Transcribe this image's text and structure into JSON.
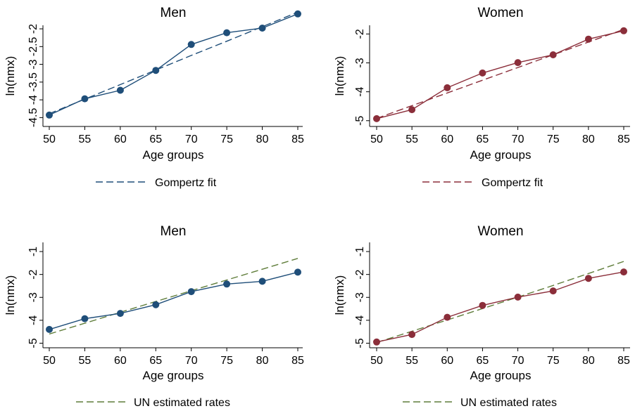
{
  "chart_data": [
    {
      "type": "line",
      "title": "Men",
      "xlabel": "Age groups",
      "ylabel": "ln(nmx)",
      "x": [
        50,
        55,
        60,
        65,
        70,
        75,
        80,
        85
      ],
      "x_ticks": [
        "50",
        "55",
        "60",
        "65",
        "70",
        "75",
        "80",
        "85"
      ],
      "y_ticks": [
        "-4.5",
        "-4",
        "-3.5",
        "-3",
        "-2.5",
        "-2"
      ],
      "y_tick_values": [
        -4.5,
        -4,
        -3.5,
        -3,
        -2.5,
        -2
      ],
      "xlim": [
        50,
        85
      ],
      "ylim": [
        -4.75,
        -1.9
      ],
      "series": [
        {
          "role": "observed",
          "style": "solid-markers",
          "color": "#1f4e79",
          "values": [
            -4.43,
            -3.97,
            -3.73,
            -3.17,
            -2.44,
            -2.11,
            -1.98,
            -1.58
          ]
        },
        {
          "role": "fit",
          "name": "Gompertz fit",
          "style": "dashed",
          "color": "#1f4e79",
          "values": [
            -4.39,
            -3.98,
            -3.57,
            -3.16,
            -2.75,
            -2.35,
            -1.94,
            -1.53
          ]
        }
      ],
      "legend": [
        "Gompertz fit"
      ]
    },
    {
      "type": "line",
      "title": "Women",
      "xlabel": "Age groups",
      "ylabel": "ln(nmx)",
      "x": [
        50,
        55,
        60,
        65,
        70,
        75,
        80,
        85
      ],
      "x_ticks": [
        "50",
        "55",
        "60",
        "65",
        "70",
        "75",
        "80",
        "85"
      ],
      "y_ticks": [
        "-5",
        "-4",
        "-3",
        "-2"
      ],
      "y_tick_values": [
        -5,
        -4,
        -3,
        -2
      ],
      "xlim": [
        50,
        85
      ],
      "ylim": [
        -5.2,
        -1.7
      ],
      "series": [
        {
          "role": "observed",
          "style": "solid-markers",
          "color": "#8b2e3a",
          "values": [
            -4.93,
            -4.62,
            -3.86,
            -3.35,
            -2.99,
            -2.72,
            -2.18,
            -1.89
          ]
        },
        {
          "role": "fit",
          "name": "Gompertz fit",
          "style": "dashed",
          "color": "#8b2e3a",
          "values": [
            -4.92,
            -4.48,
            -4.04,
            -3.6,
            -3.16,
            -2.72,
            -2.28,
            -1.84
          ]
        }
      ],
      "legend": [
        "Gompertz fit"
      ]
    },
    {
      "type": "line",
      "title": "Men",
      "xlabel": "Age groups",
      "ylabel": "ln(nmx)",
      "x": [
        50,
        55,
        60,
        65,
        70,
        75,
        80,
        85
      ],
      "x_ticks": [
        "50",
        "55",
        "60",
        "65",
        "70",
        "75",
        "80",
        "85"
      ],
      "y_ticks": [
        "-5",
        "-4",
        "-3",
        "-2",
        "-1"
      ],
      "y_tick_values": [
        -5,
        -4,
        -3,
        -2,
        -1
      ],
      "xlim": [
        50,
        85
      ],
      "ylim": [
        -5.2,
        -0.6
      ],
      "series": [
        {
          "role": "observed",
          "style": "solid-markers",
          "color": "#1f4e79",
          "values": [
            -4.4,
            -3.93,
            -3.7,
            -3.32,
            -2.75,
            -2.42,
            -2.3,
            -1.9
          ]
        },
        {
          "role": "fit",
          "name": "UN estimated rates",
          "style": "dashed",
          "color": "#5f7d3a",
          "values": [
            -4.6,
            -4.13,
            -3.65,
            -3.18,
            -2.71,
            -2.24,
            -1.77,
            -1.3
          ]
        }
      ],
      "legend": [
        "UN estimated rates"
      ]
    },
    {
      "type": "line",
      "title": "Women",
      "xlabel": "Age groups",
      "ylabel": "ln(nmx)",
      "x": [
        50,
        55,
        60,
        65,
        70,
        75,
        80,
        85
      ],
      "x_ticks": [
        "50",
        "55",
        "60",
        "65",
        "70",
        "75",
        "80",
        "85"
      ],
      "y_ticks": [
        "-5",
        "-4",
        "-3",
        "-2",
        "-1"
      ],
      "y_tick_values": [
        -5,
        -4,
        -3,
        -2,
        -1
      ],
      "xlim": [
        50,
        85
      ],
      "ylim": [
        -5.2,
        -0.6
      ],
      "series": [
        {
          "role": "observed",
          "style": "solid-markers",
          "color": "#8b2e3a",
          "values": [
            -4.95,
            -4.62,
            -3.87,
            -3.35,
            -2.99,
            -2.72,
            -2.17,
            -1.89
          ]
        },
        {
          "role": "fit",
          "name": "UN estimated rates",
          "style": "dashed",
          "color": "#5f7d3a",
          "values": [
            -4.97,
            -4.48,
            -3.99,
            -3.49,
            -2.99,
            -2.48,
            -1.96,
            -1.43
          ]
        }
      ],
      "legend": [
        "UN estimated rates"
      ]
    }
  ]
}
